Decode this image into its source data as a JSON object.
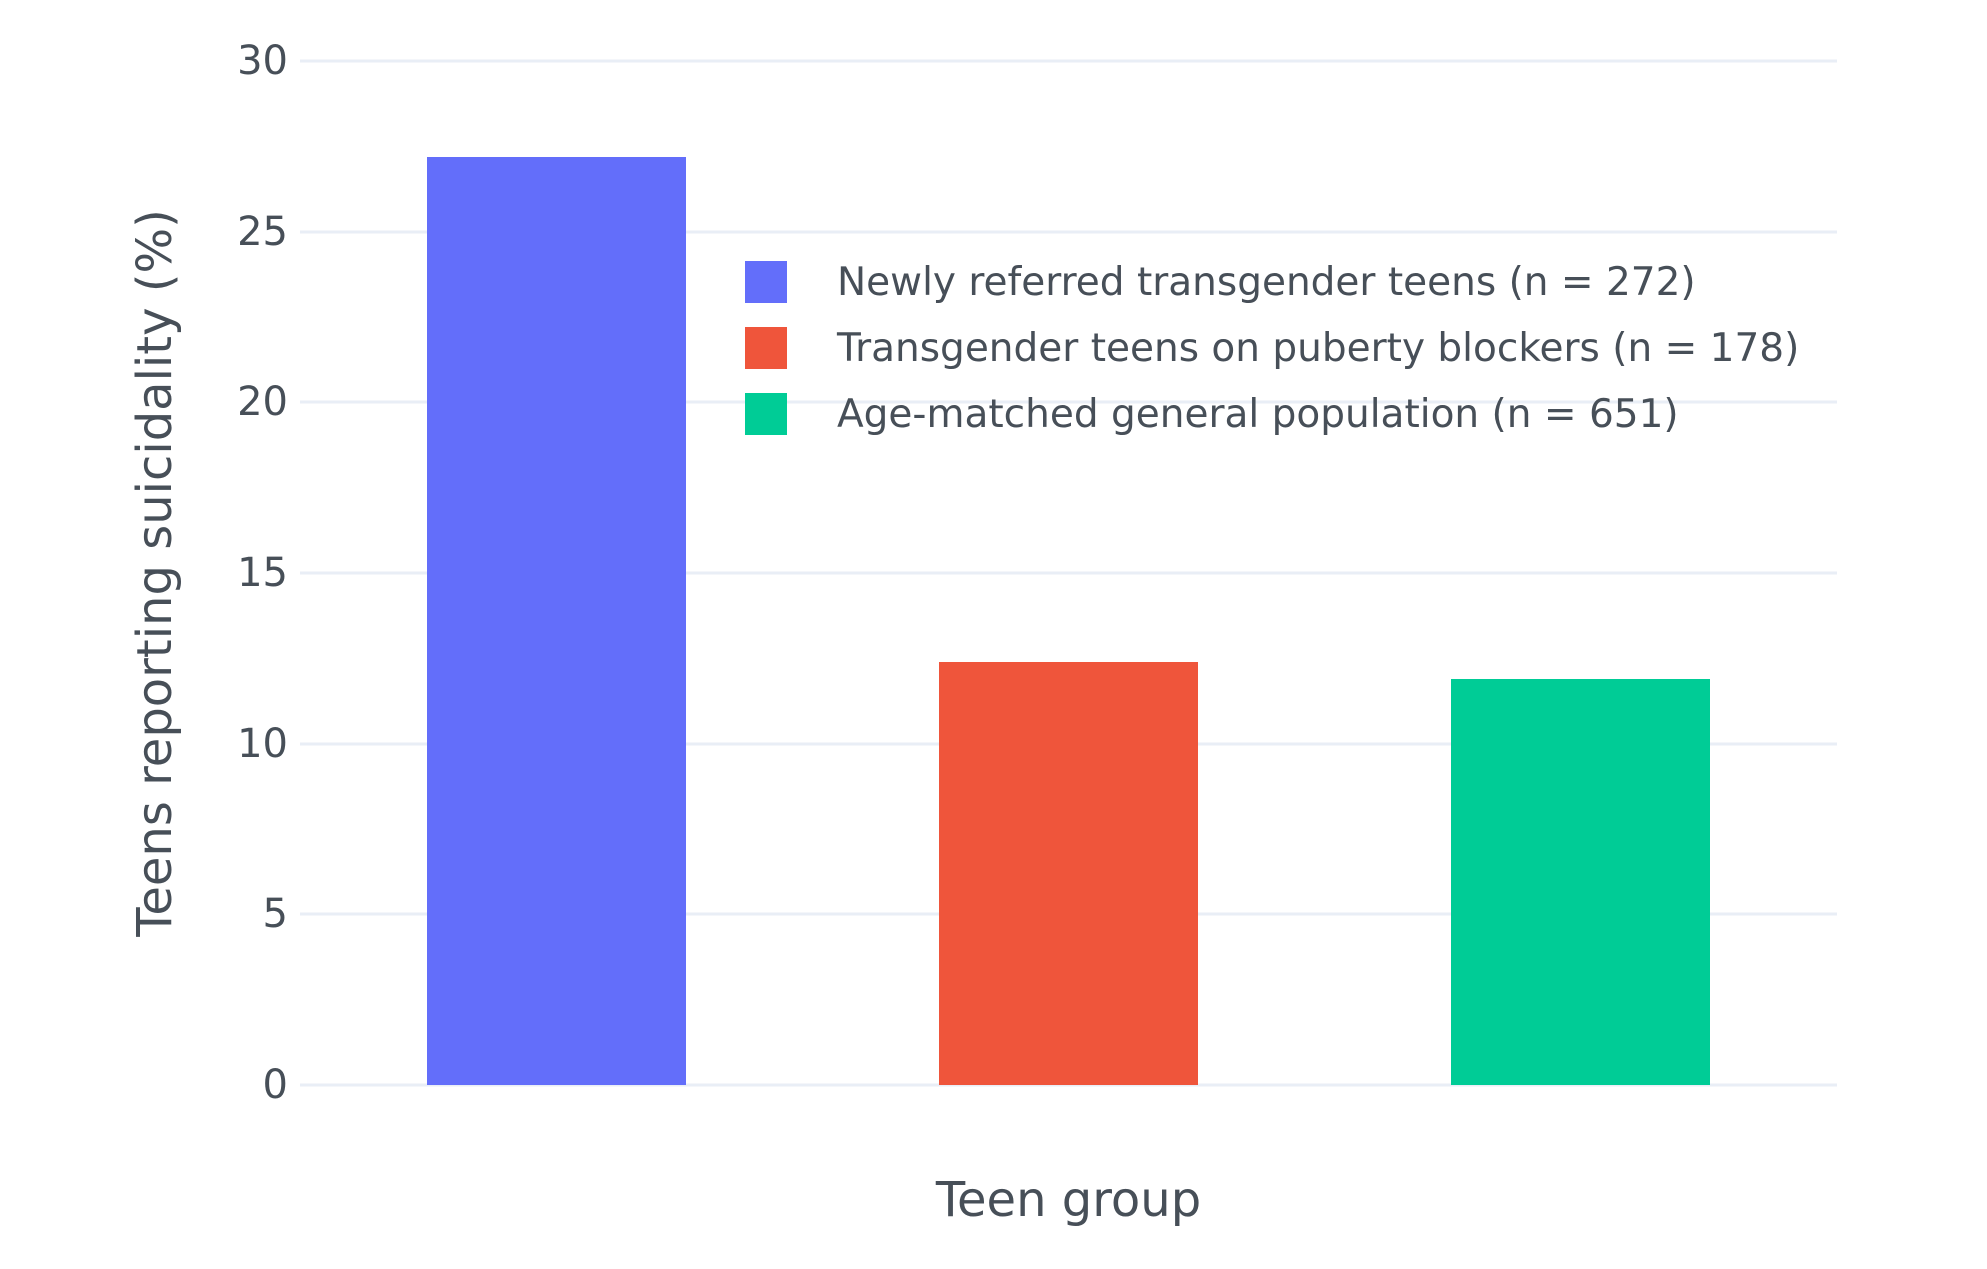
{
  "chart_data": {
    "type": "bar",
    "title": "",
    "xlabel": "Teen group",
    "ylabel": "Teens reporting suicidality (%)",
    "ylim": [
      0,
      30
    ],
    "yticks": [
      0,
      5,
      10,
      15,
      20,
      25,
      30
    ],
    "ytick_labels": [
      "0",
      "5",
      "10",
      "15",
      "20",
      "25",
      "30"
    ],
    "grid": true,
    "legend_position": "inside upper right area",
    "categories": [
      "Newly referred transgender teens (n = 272)",
      "Transgender teens on puberty blockers (n = 178)",
      "Age-matched general population (n = 651)"
    ],
    "values": [
      27.2,
      12.4,
      11.9
    ],
    "colors": [
      "#636EFA",
      "#EF553B",
      "#00CC96"
    ],
    "gridline_color": "#e9eef6",
    "text_color": "#474f58",
    "background_color": "#ffffff",
    "x_tick_labels_visible": false
  },
  "legend": {
    "items": [
      {
        "label": "Newly referred transgender teens (n = 272)",
        "color": "#636EFA"
      },
      {
        "label": "Transgender teens on puberty blockers (n = 178)",
        "color": "#EF553B"
      },
      {
        "label": "Age-matched general population (n = 651)",
        "color": "#00CC96"
      }
    ]
  }
}
